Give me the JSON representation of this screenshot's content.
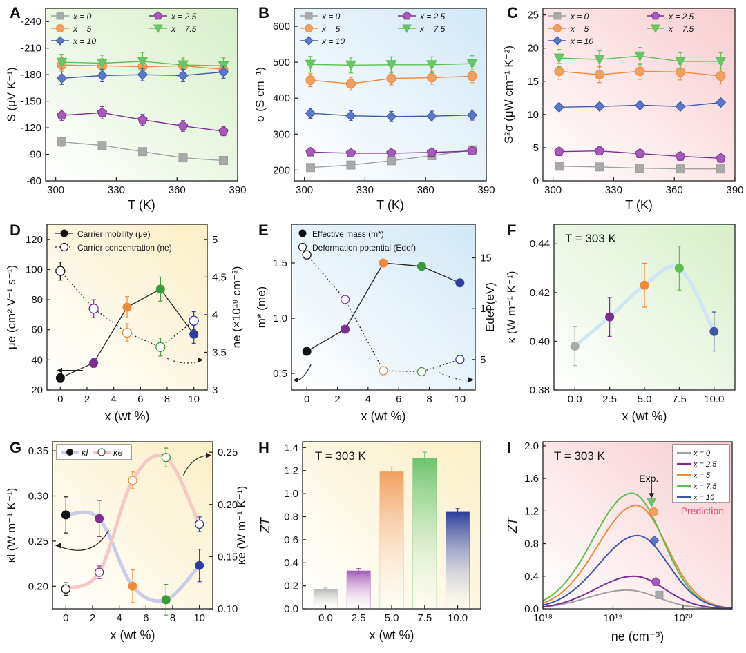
{
  "colors": {
    "x0": "#a9a9a9",
    "x25": "#a45cb8",
    "x5": "#f0a060",
    "x75": "#6cc46c",
    "x10": "#5a78c8",
    "line0": "#a0a0a0",
    "line25": "#7b2f92",
    "line5": "#ef8a3a",
    "line75": "#5cc04e",
    "line10": "#3e58a8",
    "black": "#111111",
    "pinkText": "#e0407a"
  },
  "chart_data": [
    {
      "panel": "A",
      "type": "line",
      "bg": "green",
      "xlabel": "T (K)",
      "ylabel": "S (μV K⁻¹)",
      "xlim": [
        295,
        390
      ],
      "ylim": [
        -60,
        -255
      ],
      "xticks": [
        300,
        330,
        360,
        390
      ],
      "yticks": [
        -60,
        -90,
        -120,
        -150,
        -180,
        -210,
        -240
      ],
      "legend": [
        "x = 0",
        "x = 2.5",
        "x = 5",
        "x = 7.5",
        "x = 10"
      ],
      "series": [
        {
          "name": "x = 0",
          "marker": "square",
          "x": [
            303,
            323,
            343,
            363,
            383
          ],
          "y": [
            -104,
            -100,
            -93,
            -86,
            -83
          ],
          "err": [
            5,
            4,
            4,
            3,
            3
          ]
        },
        {
          "name": "x = 2.5",
          "marker": "pentagon",
          "x": [
            303,
            323,
            343,
            363,
            383
          ],
          "y": [
            -134,
            -137,
            -129,
            -122,
            -116
          ],
          "err": [
            6,
            7,
            6,
            6,
            5
          ]
        },
        {
          "name": "x = 5",
          "marker": "circle",
          "x": [
            303,
            323,
            343,
            363,
            383
          ],
          "y": [
            -191,
            -190,
            -189,
            -190,
            -186
          ],
          "err": [
            8,
            8,
            8,
            8,
            7
          ]
        },
        {
          "name": "x = 7.5",
          "marker": "triangle",
          "x": [
            303,
            323,
            343,
            363,
            383
          ],
          "y": [
            -194,
            -193,
            -195,
            -191,
            -190
          ],
          "err": [
            9,
            9,
            10,
            9,
            9
          ]
        },
        {
          "name": "x = 10",
          "marker": "diamond",
          "x": [
            303,
            323,
            343,
            363,
            383
          ],
          "y": [
            -176,
            -179,
            -180,
            -179,
            -183
          ],
          "err": [
            7,
            7,
            7,
            7,
            7
          ]
        }
      ]
    },
    {
      "panel": "B",
      "type": "line",
      "bg": "blue",
      "xlabel": "T (K)",
      "ylabel": "σ (S cm⁻¹)",
      "xlim": [
        295,
        390
      ],
      "ylim": [
        170,
        650
      ],
      "xticks": [
        300,
        330,
        360,
        390
      ],
      "yticks": [
        200,
        300,
        400,
        500,
        600
      ],
      "legend": [
        "x = 0",
        "x = 2.5",
        "x = 5",
        "x = 7.5",
        "x = 10"
      ],
      "series": [
        {
          "name": "x = 0",
          "marker": "square",
          "x": [
            303,
            323,
            343,
            363,
            383
          ],
          "y": [
            207,
            214,
            226,
            240,
            256
          ],
          "err": [
            8,
            8,
            8,
            8,
            8
          ]
        },
        {
          "name": "x = 2.5",
          "marker": "pentagon",
          "x": [
            303,
            323,
            343,
            363,
            383
          ],
          "y": [
            250,
            247,
            247,
            249,
            253
          ],
          "err": [
            8,
            8,
            8,
            8,
            8
          ]
        },
        {
          "name": "x = 5",
          "marker": "circle",
          "x": [
            303,
            323,
            343,
            363,
            383
          ],
          "y": [
            450,
            440,
            455,
            457,
            461
          ],
          "err": [
            18,
            18,
            18,
            18,
            18
          ]
        },
        {
          "name": "x = 7.5",
          "marker": "triangle",
          "x": [
            303,
            323,
            343,
            363,
            383
          ],
          "y": [
            494,
            492,
            493,
            493,
            496
          ],
          "err": [
            22,
            22,
            22,
            22,
            22
          ]
        },
        {
          "name": "x = 10",
          "marker": "diamond",
          "x": [
            303,
            323,
            343,
            363,
            383
          ],
          "y": [
            358,
            351,
            349,
            350,
            353
          ],
          "err": [
            14,
            14,
            14,
            14,
            14
          ]
        }
      ]
    },
    {
      "panel": "C",
      "type": "line",
      "bg": "pink",
      "xlabel": "T (K)",
      "ylabel": "S²σ (μW cm⁻¹ K⁻²)",
      "xlim": [
        295,
        390
      ],
      "ylim": [
        0,
        26
      ],
      "xticks": [
        300,
        330,
        360,
        390
      ],
      "yticks": [
        0,
        5,
        10,
        15,
        20,
        25
      ],
      "legend": [
        "x = 0",
        "x = 2.5",
        "x = 5",
        "x = 7.5",
        "x = 10"
      ],
      "series": [
        {
          "name": "x = 0",
          "marker": "square",
          "x": [
            303,
            323,
            343,
            363,
            383
          ],
          "y": [
            2.2,
            2.1,
            1.9,
            1.8,
            1.8
          ],
          "err": [
            0.5,
            0.5,
            0.5,
            0.5,
            0.5
          ]
        },
        {
          "name": "x = 2.5",
          "marker": "pentagon",
          "x": [
            303,
            323,
            343,
            363,
            383
          ],
          "y": [
            4.4,
            4.5,
            4.1,
            3.7,
            3.4
          ],
          "err": [
            0.6,
            0.6,
            0.6,
            0.6,
            0.6
          ]
        },
        {
          "name": "x = 5",
          "marker": "circle",
          "x": [
            303,
            323,
            343,
            363,
            383
          ],
          "y": [
            16.5,
            16.0,
            16.5,
            16.4,
            15.8
          ],
          "err": [
            1.2,
            1.2,
            1.2,
            1.2,
            1.2
          ]
        },
        {
          "name": "x = 7.5",
          "marker": "triangle",
          "x": [
            303,
            323,
            343,
            363,
            383
          ],
          "y": [
            18.5,
            18.3,
            18.8,
            18.0,
            18.0
          ],
          "err": [
            1.3,
            1.3,
            1.3,
            1.3,
            1.3
          ]
        },
        {
          "name": "x = 10",
          "marker": "diamond",
          "x": [
            303,
            323,
            343,
            363,
            383
          ],
          "y": [
            11.1,
            11.2,
            11.4,
            11.2,
            11.8
          ],
          "err": [
            0.5,
            0.5,
            0.5,
            0.5,
            0.5
          ]
        }
      ]
    },
    {
      "panel": "D",
      "type": "line",
      "bg": "yellow",
      "xlabel": "x (wt %)",
      "ylabel": "μe (cm² V⁻¹ s⁻¹)",
      "ylabel2": "ne (×10¹⁹ cm⁻³)",
      "xlim": [
        -1,
        11
      ],
      "ylim": [
        20,
        130
      ],
      "ylim2": [
        3.0,
        5.2
      ],
      "xticks": [
        0,
        2,
        4,
        6,
        8,
        10
      ],
      "yticks": [
        20,
        40,
        60,
        80,
        100,
        120
      ],
      "yticks2": [
        3.0,
        3.5,
        4.0,
        4.5,
        5.0
      ],
      "legend": [
        "Carrier mobility (μe)",
        "Carrier concentration (ne)"
      ],
      "x": [
        0,
        2.5,
        5,
        7.5,
        10
      ],
      "mobility": [
        28,
        38,
        75,
        87,
        57
      ],
      "mobility_err": [
        3,
        3,
        7,
        8,
        6
      ],
      "concentration": [
        4.58,
        4.08,
        3.76,
        3.57,
        3.92
      ],
      "concentration_err": [
        0.12,
        0.12,
        0.12,
        0.12,
        0.12
      ]
    },
    {
      "panel": "E",
      "type": "line",
      "bg": "blue",
      "xlabel": "x (wt %)",
      "ylabel": "m* (me)",
      "ylabel2": "Edef (eV)",
      "xlim": [
        -1,
        11
      ],
      "ylim": [
        0.35,
        1.85
      ],
      "ylim2": [
        2,
        18.3
      ],
      "xticks": [
        0,
        2,
        4,
        6,
        8,
        10
      ],
      "yticks": [
        0.5,
        1.0,
        1.5
      ],
      "yticks2": [
        5,
        10,
        15
      ],
      "legend": [
        "Effective mass (m*)",
        "Deformation potential (Edef)"
      ],
      "x": [
        0,
        2.5,
        5,
        7.5,
        10
      ],
      "effective_mass": [
        0.7,
        0.9,
        1.5,
        1.47,
        1.32
      ],
      "deformation_potential": [
        15.3,
        10.9,
        3.9,
        3.8,
        5.0
      ]
    },
    {
      "panel": "F",
      "type": "scatter",
      "bg": "green",
      "title": "T = 303 K",
      "xlabel": "x (wt %)",
      "ylabel": "κ (W m⁻¹ K⁻¹)",
      "xlim": [
        -1.5,
        11.5
      ],
      "ylim": [
        0.38,
        0.448
      ],
      "xticks": [
        0.0,
        2.5,
        5.0,
        7.5,
        10.0
      ],
      "xtick_labels": [
        "0.0",
        "2.5",
        "5.0",
        "7.5",
        "10.0"
      ],
      "yticks": [
        0.38,
        0.4,
        0.42,
        0.44
      ],
      "ytick_labels": [
        "0.38",
        "0.40",
        "0.42",
        "0.44"
      ],
      "x": [
        0,
        2.5,
        5,
        7.5,
        10
      ],
      "kappa": [
        0.398,
        0.41,
        0.423,
        0.43,
        0.404
      ],
      "kappa_err": [
        0.008,
        0.008,
        0.009,
        0.009,
        0.008
      ]
    },
    {
      "panel": "G",
      "type": "line",
      "bg": "yellow",
      "xlabel": "x (wt %)",
      "ylabel": "κl (W m⁻¹ K⁻¹)",
      "ylabel2": "κe (W m⁻¹ K⁻¹)",
      "xlim": [
        -1,
        11
      ],
      "ylim": [
        0.175,
        0.36
      ],
      "ylim2": [
        0.1,
        0.26
      ],
      "xticks": [
        0,
        2,
        4,
        6,
        8,
        10
      ],
      "yticks": [
        0.2,
        0.25,
        0.3,
        0.35
      ],
      "yticks2": [
        0.1,
        0.15,
        0.2,
        0.25
      ],
      "ytick_labels": [
        "0.20",
        "0.25",
        "0.30",
        "0.35"
      ],
      "ytick_labels2": [
        "0.10",
        "0.15",
        "0.20",
        "0.25"
      ],
      "legend": [
        "κl",
        "κe"
      ],
      "x": [
        0,
        2.5,
        5,
        7.5,
        10
      ],
      "kappa_l": [
        0.279,
        0.275,
        0.2,
        0.185,
        0.223
      ],
      "kappa_l_err": [
        0.02,
        0.02,
        0.018,
        0.017,
        0.018
      ],
      "kappa_e": [
        0.119,
        0.135,
        0.223,
        0.245,
        0.181
      ],
      "kappa_e_err": [
        0.006,
        0.006,
        0.008,
        0.009,
        0.007
      ]
    },
    {
      "panel": "H",
      "type": "bar",
      "bg": "yellow",
      "title": "T = 303 K",
      "xlabel": "x (wt %)",
      "ylabel": "ZT",
      "ylim": [
        0,
        1.45
      ],
      "categories": [
        "0.0",
        "2.5",
        "5.0",
        "7.5",
        "10.0"
      ],
      "values": [
        0.17,
        0.33,
        1.19,
        1.31,
        0.84
      ],
      "err": [
        0.01,
        0.02,
        0.04,
        0.05,
        0.03
      ],
      "yticks": [
        0.0,
        0.2,
        0.4,
        0.6,
        0.8,
        1.0,
        1.2,
        1.4
      ],
      "ytick_labels": [
        "0.0",
        "0.2",
        "0.4",
        "0.6",
        "0.8",
        "1.0",
        "1.2",
        "1.4"
      ]
    },
    {
      "panel": "I",
      "type": "line",
      "bg": "pink",
      "title": "T = 303 K",
      "annotation_exp": "Exp.",
      "annotation_prediction": "Prediction",
      "xlabel": "ne (cm⁻³)",
      "ylabel": "ZT",
      "xlim_log": [
        18,
        20.7
      ],
      "ylim": [
        0,
        2.05
      ],
      "xticks_log": [
        18,
        19,
        20
      ],
      "xtick_labels": [
        "10¹⁸",
        "10¹⁹",
        "10²⁰"
      ],
      "yticks": [
        0.0,
        0.4,
        0.8,
        1.2,
        1.6,
        2.0
      ],
      "ytick_labels": [
        "0.0",
        "0.4",
        "0.8",
        "1.2",
        "1.6",
        "2.0"
      ],
      "legend": [
        "x = 0",
        "x = 2.5",
        "x = 5",
        "x = 7.5",
        "x = 10"
      ],
      "series": [
        {
          "name": "x = 0",
          "peak": 0.23,
          "log_peak": 19.2,
          "exp_log_ne": 19.66,
          "exp_zt": 0.17
        },
        {
          "name": "x = 2.5",
          "peak": 0.4,
          "log_peak": 19.3,
          "exp_log_ne": 19.61,
          "exp_zt": 0.33
        },
        {
          "name": "x = 5",
          "peak": 1.27,
          "log_peak": 19.33,
          "exp_log_ne": 19.58,
          "exp_zt": 1.19
        },
        {
          "name": "x = 7.5",
          "peak": 1.42,
          "log_peak": 19.27,
          "exp_log_ne": 19.55,
          "exp_zt": 1.31
        },
        {
          "name": "x = 10",
          "peak": 0.9,
          "log_peak": 19.35,
          "exp_log_ne": 19.59,
          "exp_zt": 0.84
        }
      ]
    }
  ]
}
